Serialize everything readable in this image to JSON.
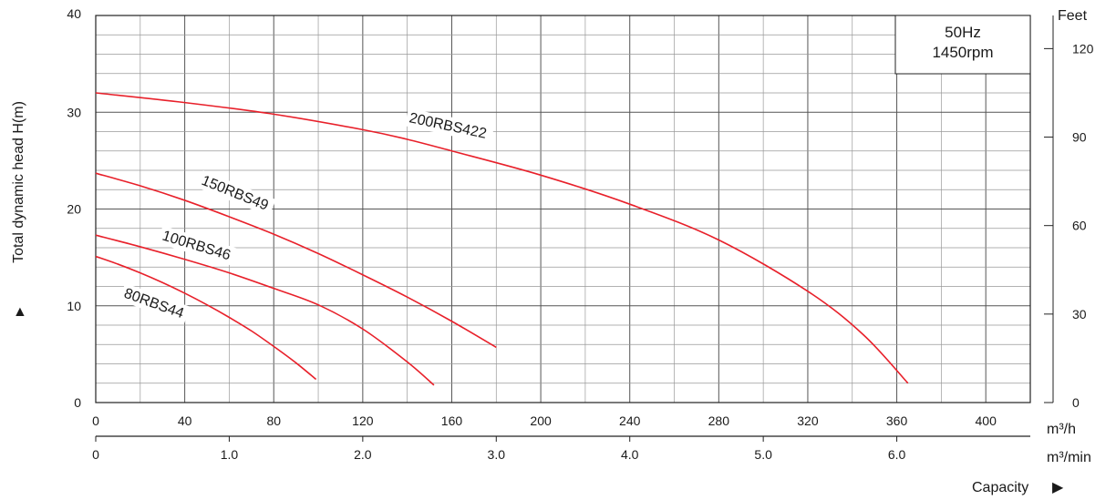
{
  "chart_data": {
    "type": "line",
    "ylabel": "Total dynamic head H(m)",
    "ylim": [
      0,
      40
    ],
    "y_ticks": [
      "0",
      "10",
      "20",
      "30",
      "40"
    ],
    "xlim": [
      0,
      420
    ],
    "x_unit": "m³/h",
    "x_ticks": [
      "0",
      "40",
      "80",
      "120",
      "160",
      "200",
      "240",
      "280",
      "320",
      "360",
      "400"
    ],
    "x2_unit": "m³/min",
    "x2_ticks": [
      "0",
      "1.0",
      "2.0",
      "3.0",
      "4.0",
      "5.0",
      "6.0"
    ],
    "y2_unit": "Feet",
    "y2_ticks": [
      "0",
      "30",
      "60",
      "90",
      "120"
    ],
    "xlabel": "Capacity",
    "info_box": [
      "50Hz",
      "1450rpm"
    ],
    "grid": true,
    "curve_color": "#e8202a",
    "series": [
      {
        "name": "200RBS422",
        "x": [
          0,
          40,
          80,
          120,
          140,
          160,
          200,
          240,
          280,
          320,
          345,
          365
        ],
        "y": [
          32,
          31,
          29.8,
          28.2,
          27.2,
          26,
          23.5,
          20.5,
          16.8,
          11.5,
          7,
          2
        ]
      },
      {
        "name": "150RBS49",
        "x": [
          0,
          20,
          40,
          60,
          80,
          100,
          120,
          140,
          160,
          180
        ],
        "y": [
          23.7,
          22.4,
          20.9,
          19.2,
          17.4,
          15.4,
          13.2,
          10.9,
          8.4,
          5.7
        ]
      },
      {
        "name": "100RBS46",
        "x": [
          0,
          20,
          40,
          60,
          80,
          100,
          120,
          140,
          152
        ],
        "y": [
          17.3,
          16.1,
          14.8,
          13.4,
          11.8,
          10.1,
          7.6,
          4.2,
          1.8
        ]
      },
      {
        "name": "80RBS44",
        "x": [
          0,
          10,
          20,
          30,
          40,
          50,
          60,
          70,
          80,
          90,
          99
        ],
        "y": [
          15.1,
          14.3,
          13.4,
          12.4,
          11.3,
          10.1,
          8.8,
          7.4,
          5.8,
          4.1,
          2.4
        ]
      }
    ]
  }
}
